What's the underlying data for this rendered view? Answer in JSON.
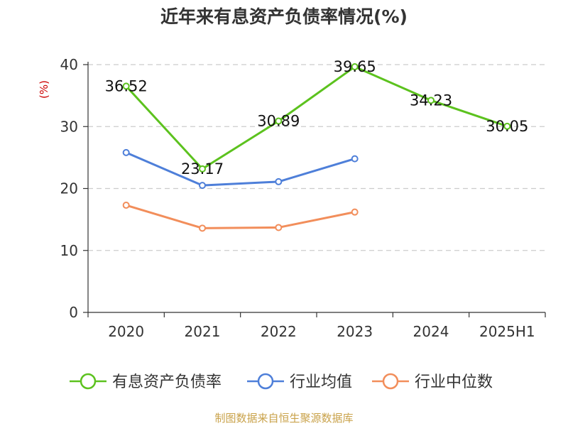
{
  "title": "近年来有息资产负债率情况(%)",
  "footer": "制图数据来自恒生聚源数据库",
  "colors": {
    "series_1": "#5cc21e",
    "series_2": "#4e7fd9",
    "series_3": "#f28e5b"
  },
  "chart_data": {
    "type": "line",
    "title": "近年来有息资产负债率情况(%)",
    "xlabel": "",
    "ylabel": "(%)",
    "ylim": [
      0,
      40
    ],
    "yticks": [
      0,
      10,
      20,
      30,
      40
    ],
    "grid": true,
    "legend_position": "bottom",
    "categories": [
      "2020",
      "2021",
      "2022",
      "2023",
      "2024",
      "2025H1"
    ],
    "series": [
      {
        "name": "有息资产负债率",
        "values": [
          36.52,
          23.17,
          30.89,
          39.65,
          34.23,
          30.05
        ],
        "labels": [
          "36.52",
          "23.17",
          "30.89",
          "39.65",
          "34.23",
          "30.05"
        ]
      },
      {
        "name": "行业均值",
        "values": [
          25.8,
          20.5,
          21.1,
          24.8,
          null,
          null
        ]
      },
      {
        "name": "行业中位数",
        "values": [
          17.3,
          13.6,
          13.7,
          16.2,
          null,
          null
        ]
      }
    ]
  }
}
